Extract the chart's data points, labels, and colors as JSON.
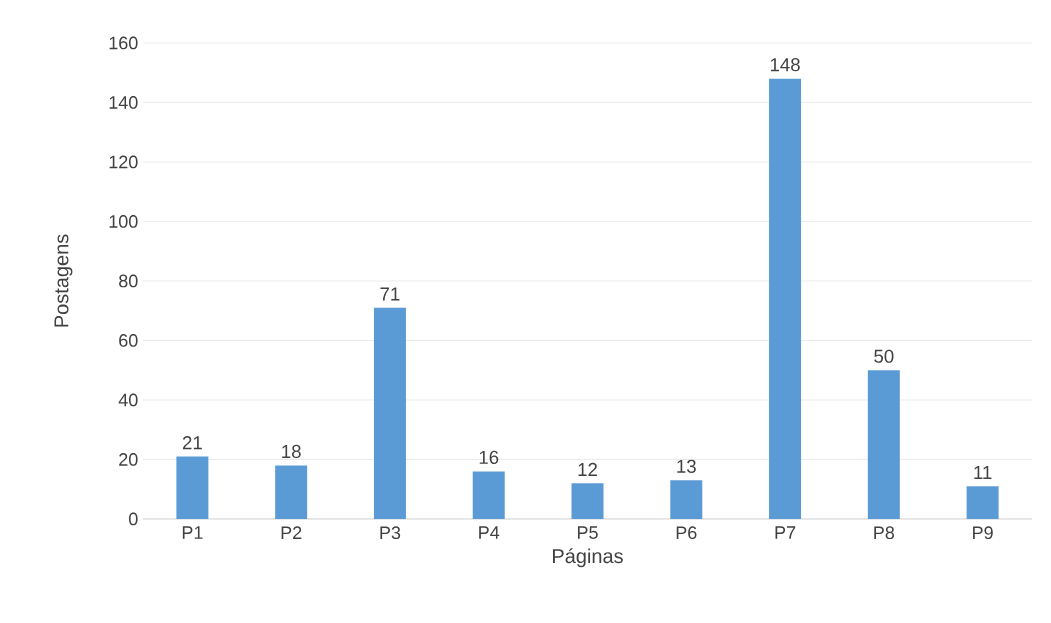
{
  "chart_data": {
    "type": "bar",
    "xlabel": "Páginas",
    "ylabel": "Postagens",
    "categories": [
      "P1",
      "P2",
      "P3",
      "P4",
      "P5",
      "P6",
      "P7",
      "P8",
      "P9"
    ],
    "values": [
      21,
      18,
      71,
      16,
      12,
      13,
      148,
      50,
      11
    ],
    "color": "#5b9bd5",
    "ylim": [
      0,
      160
    ],
    "yticks": [
      0,
      20,
      40,
      60,
      80,
      100,
      120,
      140,
      160
    ],
    "grid": "y",
    "data_labels": true
  }
}
